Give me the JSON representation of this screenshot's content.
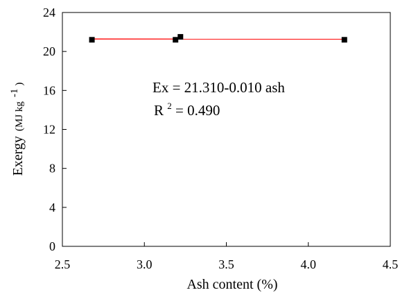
{
  "chart_data": {
    "type": "scatter",
    "title": "",
    "xlabel": "Ash content (%)",
    "ylabel": "Exergy",
    "ylabel_unit": "(MJ kg",
    "ylabel_unit_exp": "-1",
    "ylabel_unit_close": ")",
    "xlim": [
      2.5,
      4.5
    ],
    "ylim": [
      0,
      24
    ],
    "xticks": [
      "2.5",
      "3.0",
      "3.5",
      "4.0",
      "4.5"
    ],
    "yticks": [
      "0",
      "4",
      "8",
      "12",
      "16",
      "20",
      "24"
    ],
    "grid": false,
    "legend": "none",
    "series": [
      {
        "x": [
          2.68,
          3.19,
          3.22,
          4.22
        ],
        "y": [
          21.2,
          21.2,
          21.5,
          21.2
        ],
        "marker": "square",
        "color": "#000000"
      }
    ],
    "trendline": {
      "x": [
        2.68,
        4.22
      ],
      "y": [
        21.28,
        21.27
      ],
      "color": "#ff0000"
    },
    "annotations": {
      "equation": "Ex = 21.310-0.010 ash",
      "r2_prefix": "R",
      "r2_sup": "2",
      "r2_suffix": " = 0.490"
    }
  }
}
